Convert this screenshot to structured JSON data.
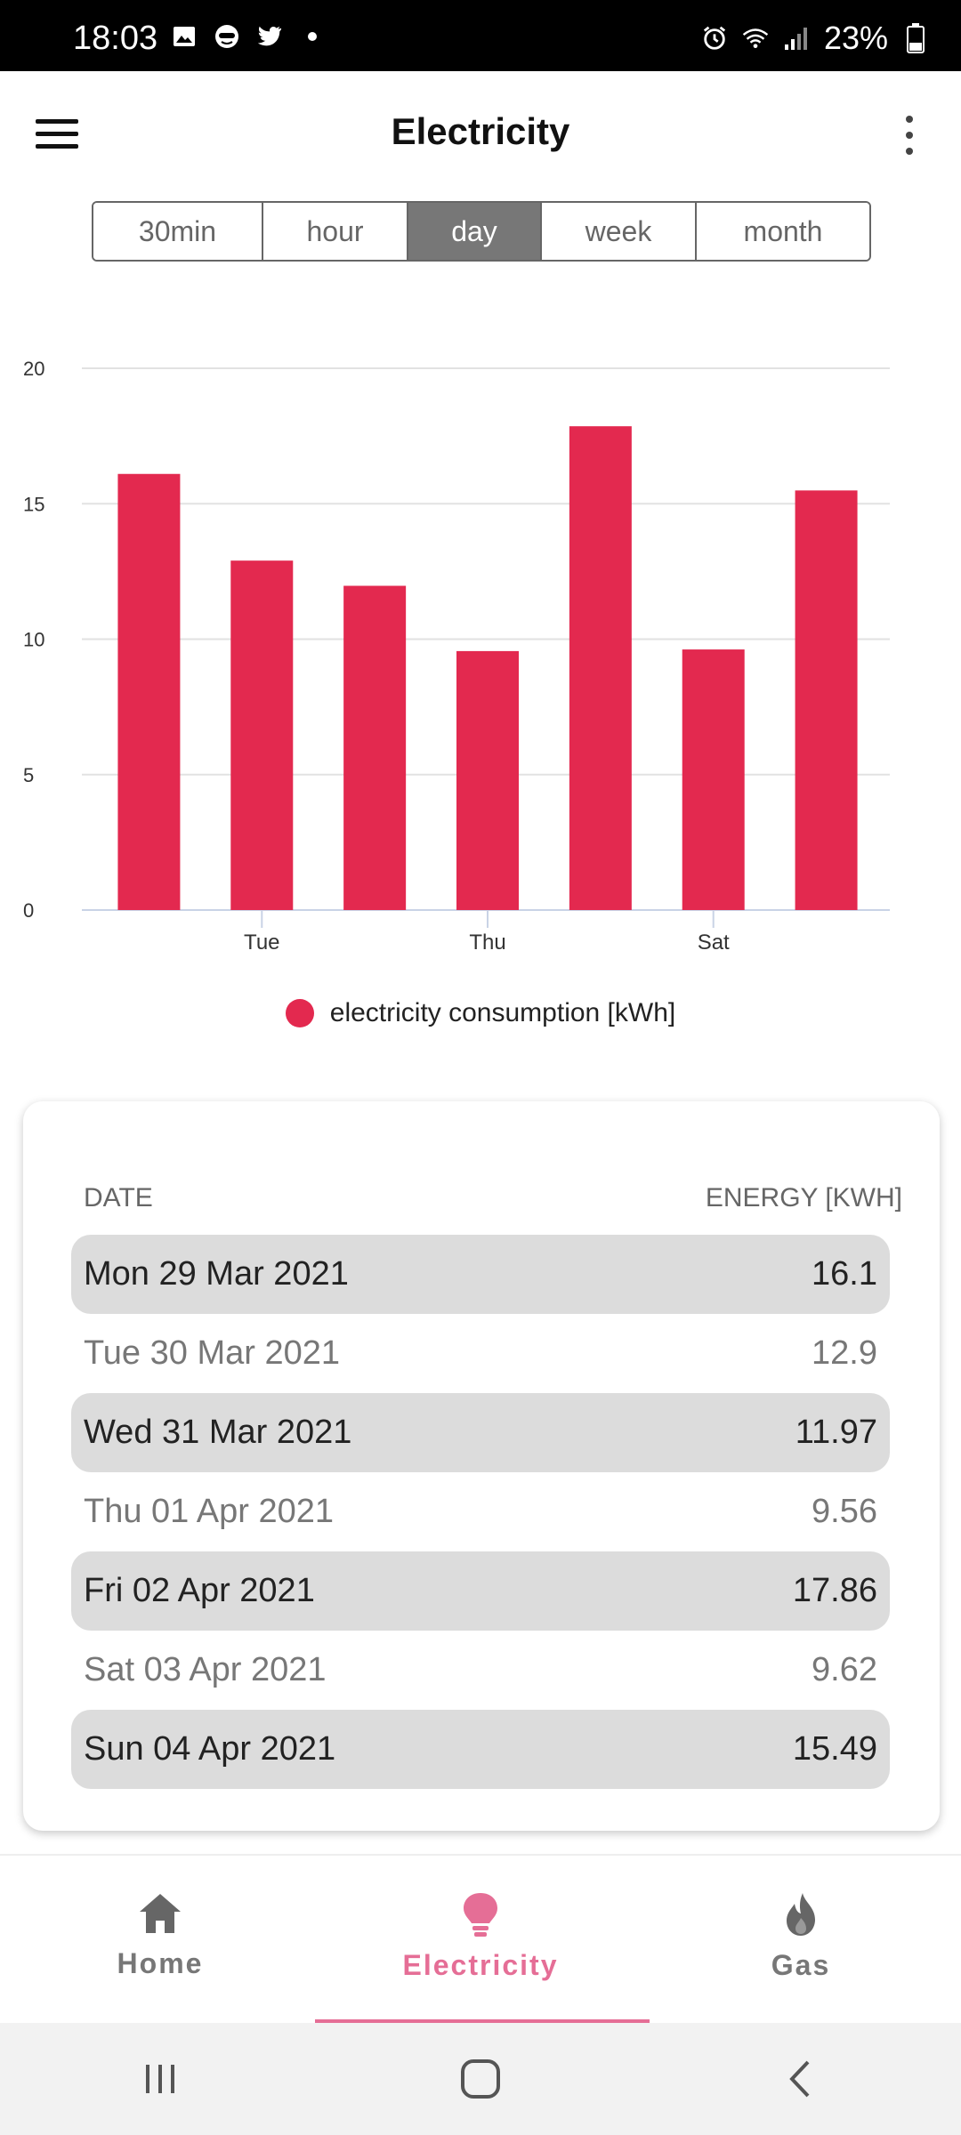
{
  "status_bar": {
    "time": "18:03",
    "battery": "23%"
  },
  "app": {
    "title": "Electricity"
  },
  "segments": {
    "items": [
      "30min",
      "hour",
      "day",
      "week",
      "month"
    ],
    "active": "day"
  },
  "chart_data": {
    "type": "bar",
    "categories": [
      "Mon",
      "Tue",
      "Wed",
      "Thu",
      "Fri",
      "Sat",
      "Sun"
    ],
    "x_tick_labels": [
      "",
      "Tue",
      "",
      "Thu",
      "",
      "Sat",
      ""
    ],
    "series": [
      {
        "name": "electricity consumption [kWh]",
        "values": [
          16.1,
          12.9,
          11.97,
          9.56,
          17.86,
          9.62,
          15.49
        ],
        "color": "#e3294f"
      }
    ],
    "ylim": [
      0,
      20
    ],
    "y_ticks": [
      0,
      5,
      10,
      15,
      20
    ],
    "grid": true,
    "legend_position": "bottom"
  },
  "table": {
    "headers": {
      "date": "DATE",
      "energy": "ENERGY [KWH]"
    },
    "rows": [
      {
        "date": "Mon 29 Mar 2021",
        "energy": "16.1"
      },
      {
        "date": "Tue 30 Mar 2021",
        "energy": "12.9"
      },
      {
        "date": "Wed 31 Mar 2021",
        "energy": "11.97"
      },
      {
        "date": "Thu 01 Apr 2021",
        "energy": "9.56"
      },
      {
        "date": "Fri 02 Apr 2021",
        "energy": "17.86"
      },
      {
        "date": "Sat 03 Apr 2021",
        "energy": "9.62"
      },
      {
        "date": "Sun 04 Apr 2021",
        "energy": "15.49"
      }
    ]
  },
  "bottom_nav": {
    "items": [
      {
        "label": "Home",
        "icon": "home-icon"
      },
      {
        "label": "Electricity",
        "icon": "lightbulb-icon"
      },
      {
        "label": "Gas",
        "icon": "flame-icon"
      }
    ],
    "active": "Electricity"
  },
  "colors": {
    "accent": "#e56e96",
    "bar": "#e3294f",
    "segment_active": "#777777"
  }
}
